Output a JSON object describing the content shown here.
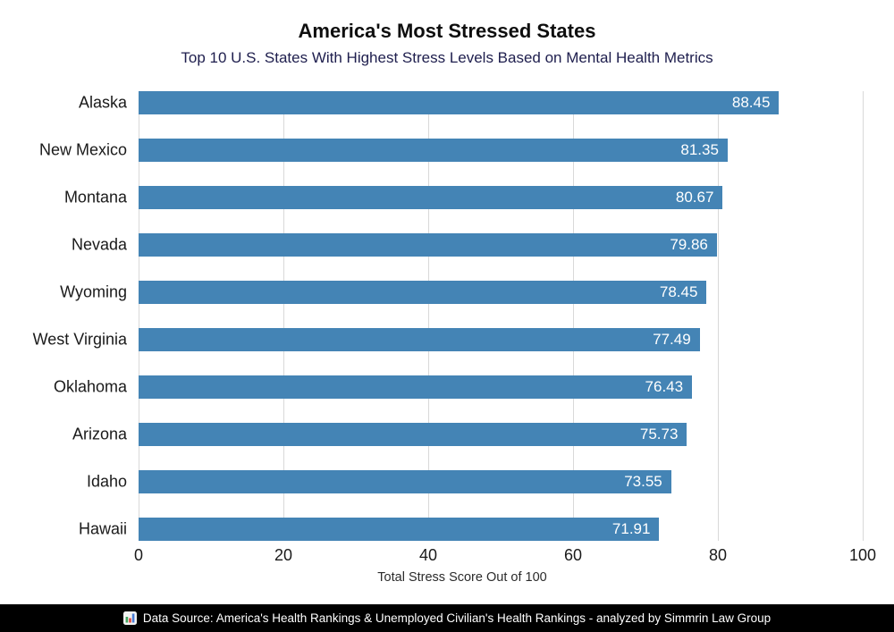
{
  "header": {
    "title": "America's Most Stressed States",
    "subtitle": "Top 10 U.S. States With Highest Stress Levels Based on Mental Health Metrics"
  },
  "chart_data": {
    "type": "bar",
    "orientation": "horizontal",
    "title": "America's Most Stressed States",
    "subtitle": "Top 10 U.S. States With Highest Stress Levels Based on Mental Health Metrics",
    "categories": [
      "Alaska",
      "New Mexico",
      "Montana",
      "Nevada",
      "Wyoming",
      "West Virginia",
      "Oklahoma",
      "Arizona",
      "Idaho",
      "Hawaii"
    ],
    "values": [
      88.45,
      81.35,
      80.67,
      79.86,
      78.45,
      77.49,
      76.43,
      75.73,
      73.55,
      71.91
    ],
    "value_labels": [
      "88.45",
      "81.35",
      "80.67",
      "79.86",
      "78.45",
      "77.49",
      "76.43",
      "75.73",
      "73.55",
      "71.91"
    ],
    "xlabel": "Total Stress Score Out of 100",
    "xlim": [
      0,
      100
    ],
    "xticks": [
      0,
      20,
      40,
      60,
      80,
      100
    ],
    "grid": "vertical-only",
    "legend": "none"
  },
  "colors": {
    "bar": "#4484b5",
    "gridline": "#d9d9d9",
    "title": "#0e0e0e",
    "subtitle": "#20204f",
    "bar_value_text": "#ffffff",
    "footer_background": "#000000",
    "footer_text": "#ffffff"
  },
  "footer": {
    "icon": "bar-chart-icon",
    "text": "Data Source: America's Health Rankings & Unemployed Civilian's Health Rankings - analyzed by Simmrin Law Group"
  }
}
